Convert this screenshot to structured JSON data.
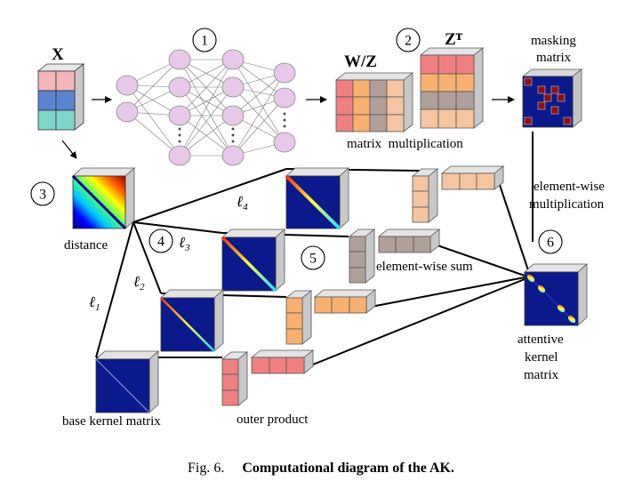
{
  "labels": {
    "x": "X",
    "wz": "W/Z",
    "zt": "Zᵀ",
    "masking_matrix": [
      "masking",
      "matrix"
    ],
    "matrix_multiplication": "matrix  multiplication",
    "element_wise_multiplication": [
      "element-wise",
      "multiplication"
    ],
    "distance": "distance",
    "element_wise_sum": "element-wise sum",
    "attentive_kernel_matrix": [
      "attentive",
      "kernel",
      "matrix"
    ],
    "base_kernel_matrix": "base kernel matrix",
    "outer_product": "outer product"
  },
  "steps": [
    "1",
    "2",
    "3",
    "4",
    "5",
    "6"
  ],
  "ell": {
    "l1": "ℓ",
    "l1_sub": "1",
    "l2": "ℓ",
    "l2_sub": "2",
    "l3": "ℓ",
    "l3_sub": "3",
    "l4": "ℓ",
    "l4_sub": "4"
  },
  "caption": {
    "prefix": "Fig. 6.",
    "title": "Computational diagram of the AK."
  },
  "colors": {
    "navy": "#0a1a8c",
    "pink": "#f08080",
    "peach": "#f5c5a0",
    "orange": "#f8b070",
    "gray_brown": "#b0a09a",
    "blue_cell": "#5b84d0",
    "teal": "#7fd6c8",
    "rose": "#f2c0c0",
    "node_fill": "#e8c8e8",
    "mask_red": "#8a1010",
    "face_gray": "#d8d8d8"
  }
}
